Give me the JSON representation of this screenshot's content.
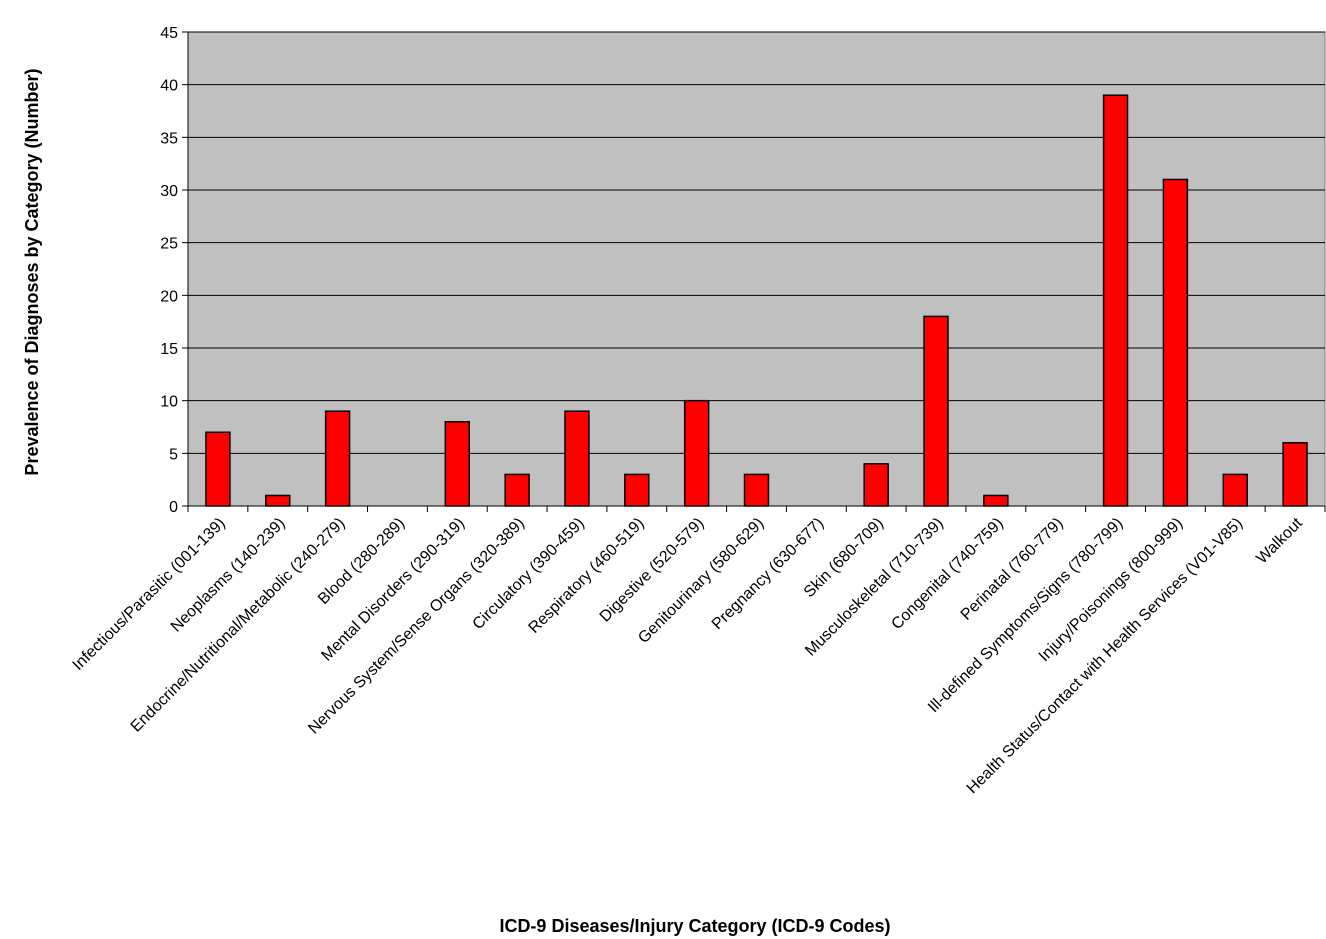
{
  "chart_data": {
    "type": "bar",
    "title": "",
    "xlabel": "ICD-9 Diseases/Injury Category (ICD-9 Codes)",
    "ylabel": "Prevalence of Diagnoses by Category (Number)",
    "ylim": [
      0,
      45
    ],
    "yticks": [
      0,
      5,
      10,
      15,
      20,
      25,
      30,
      35,
      40,
      45
    ],
    "grid": true,
    "legend": "none",
    "categories": [
      "Infectious/Parasitic (001-139)",
      "Neoplasms (140-239)",
      "Endocrine/Nutritional/Metabolic (240-279)",
      "Blood (280-289)",
      "Mental Disorders (290-319)",
      "Nervous System/Sense Organs (320-389)",
      "Circulatory (390-459)",
      "Respiratory (460-519)",
      "Digestive (520-579)",
      "Genitourinary (580-629)",
      "Pregnancy (630-677)",
      "Skin (680-709)",
      "Musculoskeletal (710-739)",
      "Congenital (740-759)",
      "Perinatal (760-779)",
      "Ill-defined Symptoms/Signs (780-799)",
      "Injury/Poisonings (800-999)",
      "Health Status/Contact with Health Services (V01-V85)",
      "Walkout"
    ],
    "values": [
      7,
      1,
      9,
      0,
      8,
      3,
      9,
      3,
      10,
      3,
      0,
      4,
      18,
      1,
      0,
      39,
      31,
      3,
      6
    ],
    "colors": {
      "plot_background": "#c0c0c0",
      "bar_fill": "#ff0000",
      "bar_stroke": "#000000",
      "gridline": "#000000"
    }
  }
}
